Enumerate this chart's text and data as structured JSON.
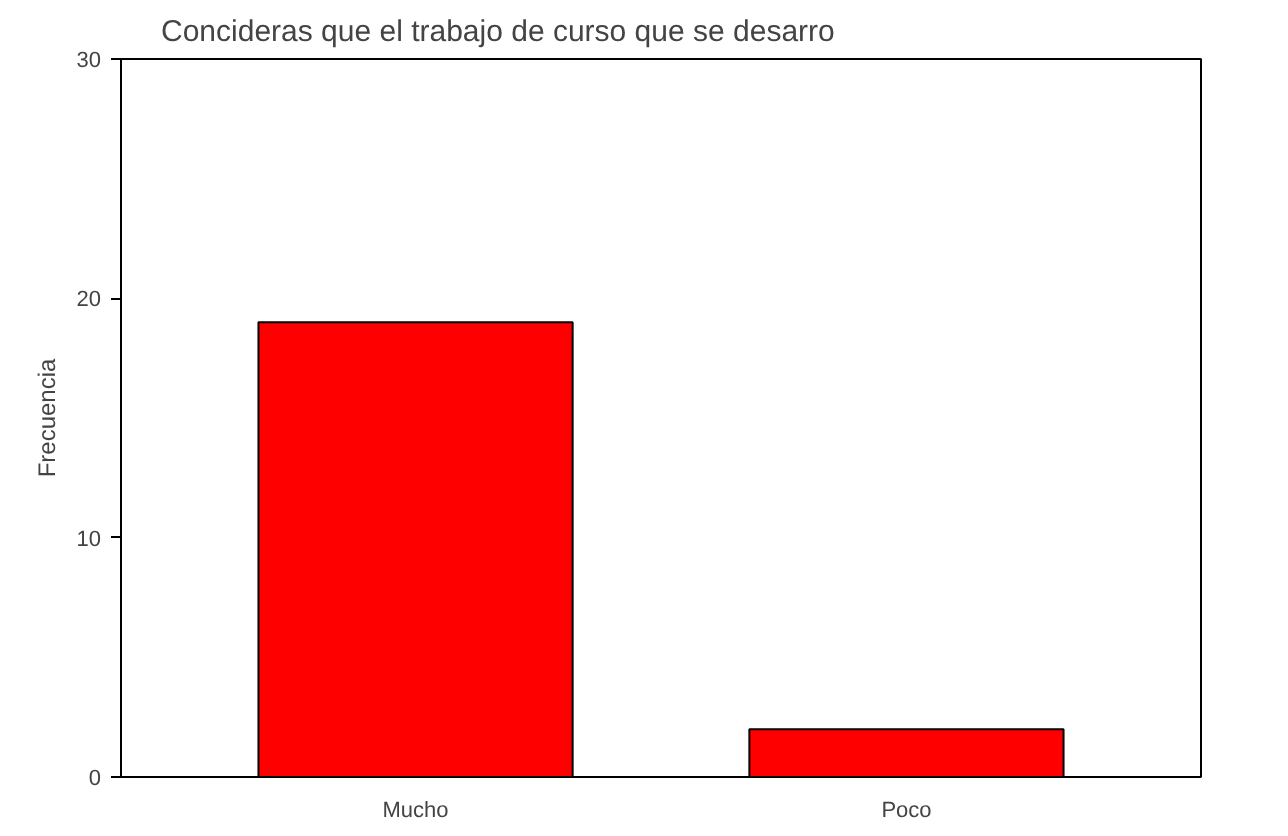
{
  "chart_data": {
    "type": "bar",
    "title": "Concideras que el trabajo de curso que se desarro",
    "ylabel": "Frecuencia",
    "categories": [
      "Mucho",
      "Poco"
    ],
    "values": [
      19,
      2
    ],
    "color": "#ff0000",
    "ylim": [
      0,
      30
    ],
    "yticks": [
      0,
      10,
      20,
      30
    ],
    "grid": false
  }
}
